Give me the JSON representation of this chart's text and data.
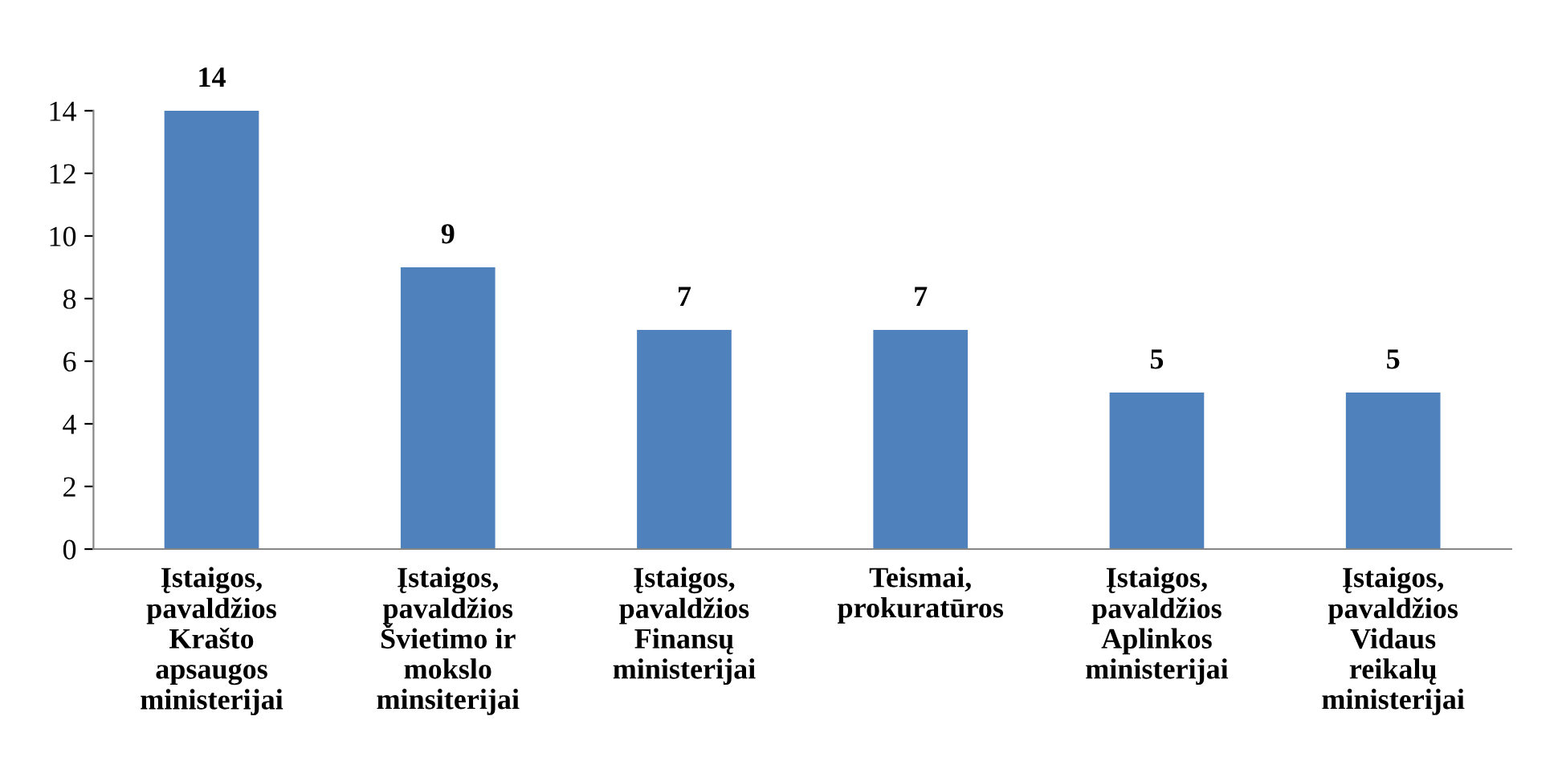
{
  "chart_data": {
    "type": "bar",
    "categories": [
      "Įstaigos,\npavaldžios\nKrašto\napsaugos\nministerijai",
      "Įstaigos,\npavaldžios\nŠvietimo ir\nmokslo\nminsiterijai",
      "Įstaigos,\npavaldžios\nFinansų\nministerijai",
      "Teismai,\nprokuratūros",
      "Įstaigos,\npavaldžios\nAplinkos\nministerijai",
      "Įstaigos,\npavaldžios\nVidaus\nreikalų\nministerijai"
    ],
    "values": [
      14,
      9,
      7,
      7,
      5,
      5
    ],
    "color": "#4f81bd",
    "ylim": [
      0,
      14
    ],
    "yticks": [
      0,
      2,
      4,
      6,
      8,
      10,
      12,
      14
    ],
    "grid": false,
    "data_labels": true
  }
}
